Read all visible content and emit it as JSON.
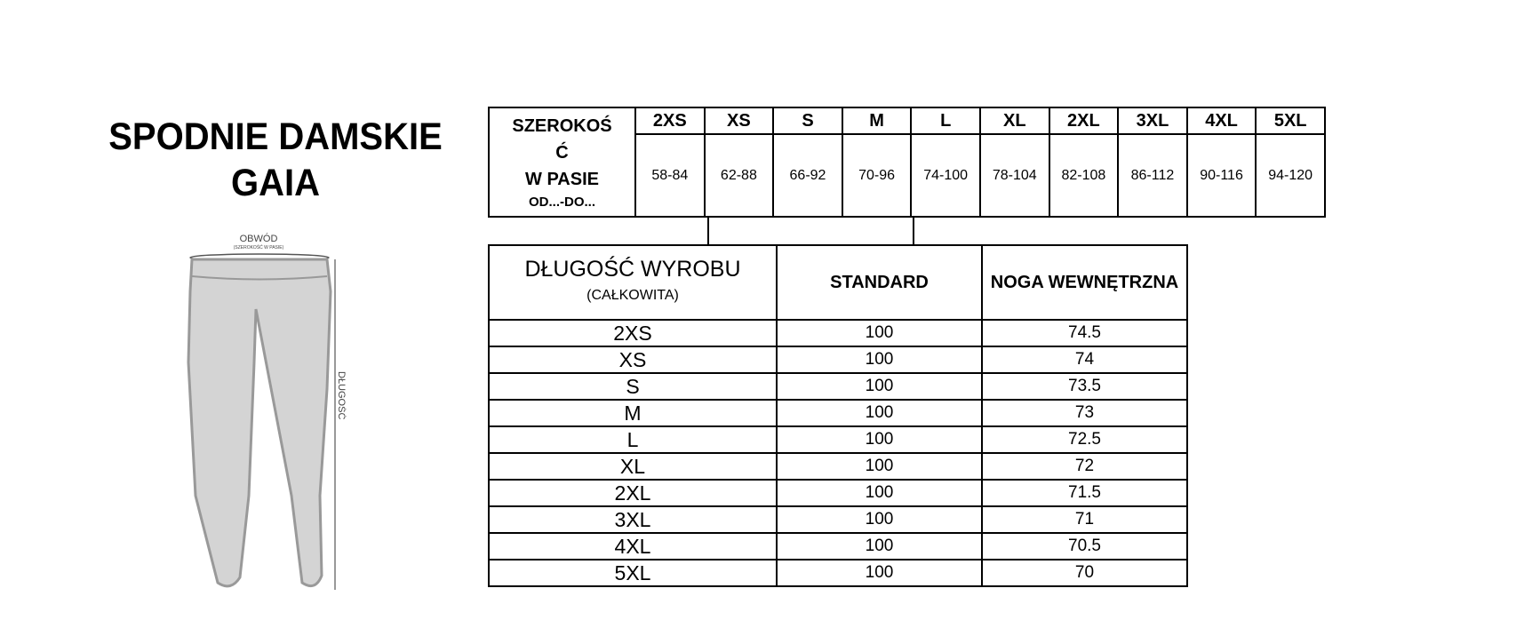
{
  "title": {
    "line1": "SPODNIE DAMSKIE",
    "line2": "GAIA"
  },
  "illustration": {
    "waist_label": "OBWÓD",
    "waist_sublabel": "(SZEROKOŚĆ W PASIE)",
    "length_label": "DŁUGOŚĆ"
  },
  "waist_table": {
    "label_line1": "SZEROKOŚ",
    "label_line2": "Ć",
    "label_line3": "W PASIE",
    "label_line4": "OD...-DO...",
    "sizes": [
      "2XS",
      "XS",
      "S",
      "M",
      "L",
      "XL",
      "2XL",
      "3XL",
      "4XL",
      "5XL"
    ],
    "ranges": [
      "58-84",
      "62-88",
      "66-92",
      "70-96",
      "74-100",
      "78-104",
      "82-108",
      "86-112",
      "90-116",
      "94-120"
    ]
  },
  "length_table": {
    "header_main": "DŁUGOŚĆ WYROBU",
    "header_sub": "(CAŁKOWITA)",
    "header_standard": "STANDARD",
    "header_inseam": "NOGA WEWNĘTRZNA",
    "rows": [
      {
        "size": "2XS",
        "standard": "100",
        "inseam": "74.5"
      },
      {
        "size": "XS",
        "standard": "100",
        "inseam": "74"
      },
      {
        "size": "S",
        "standard": "100",
        "inseam": "73.5"
      },
      {
        "size": "M",
        "standard": "100",
        "inseam": "73"
      },
      {
        "size": "L",
        "standard": "100",
        "inseam": "72.5"
      },
      {
        "size": "XL",
        "standard": "100",
        "inseam": "72"
      },
      {
        "size": "2XL",
        "standard": "100",
        "inseam": "71.5"
      },
      {
        "size": "3XL",
        "standard": "100",
        "inseam": "71"
      },
      {
        "size": "4XL",
        "standard": "100",
        "inseam": "70.5"
      },
      {
        "size": "5XL",
        "standard": "100",
        "inseam": "70"
      }
    ]
  }
}
